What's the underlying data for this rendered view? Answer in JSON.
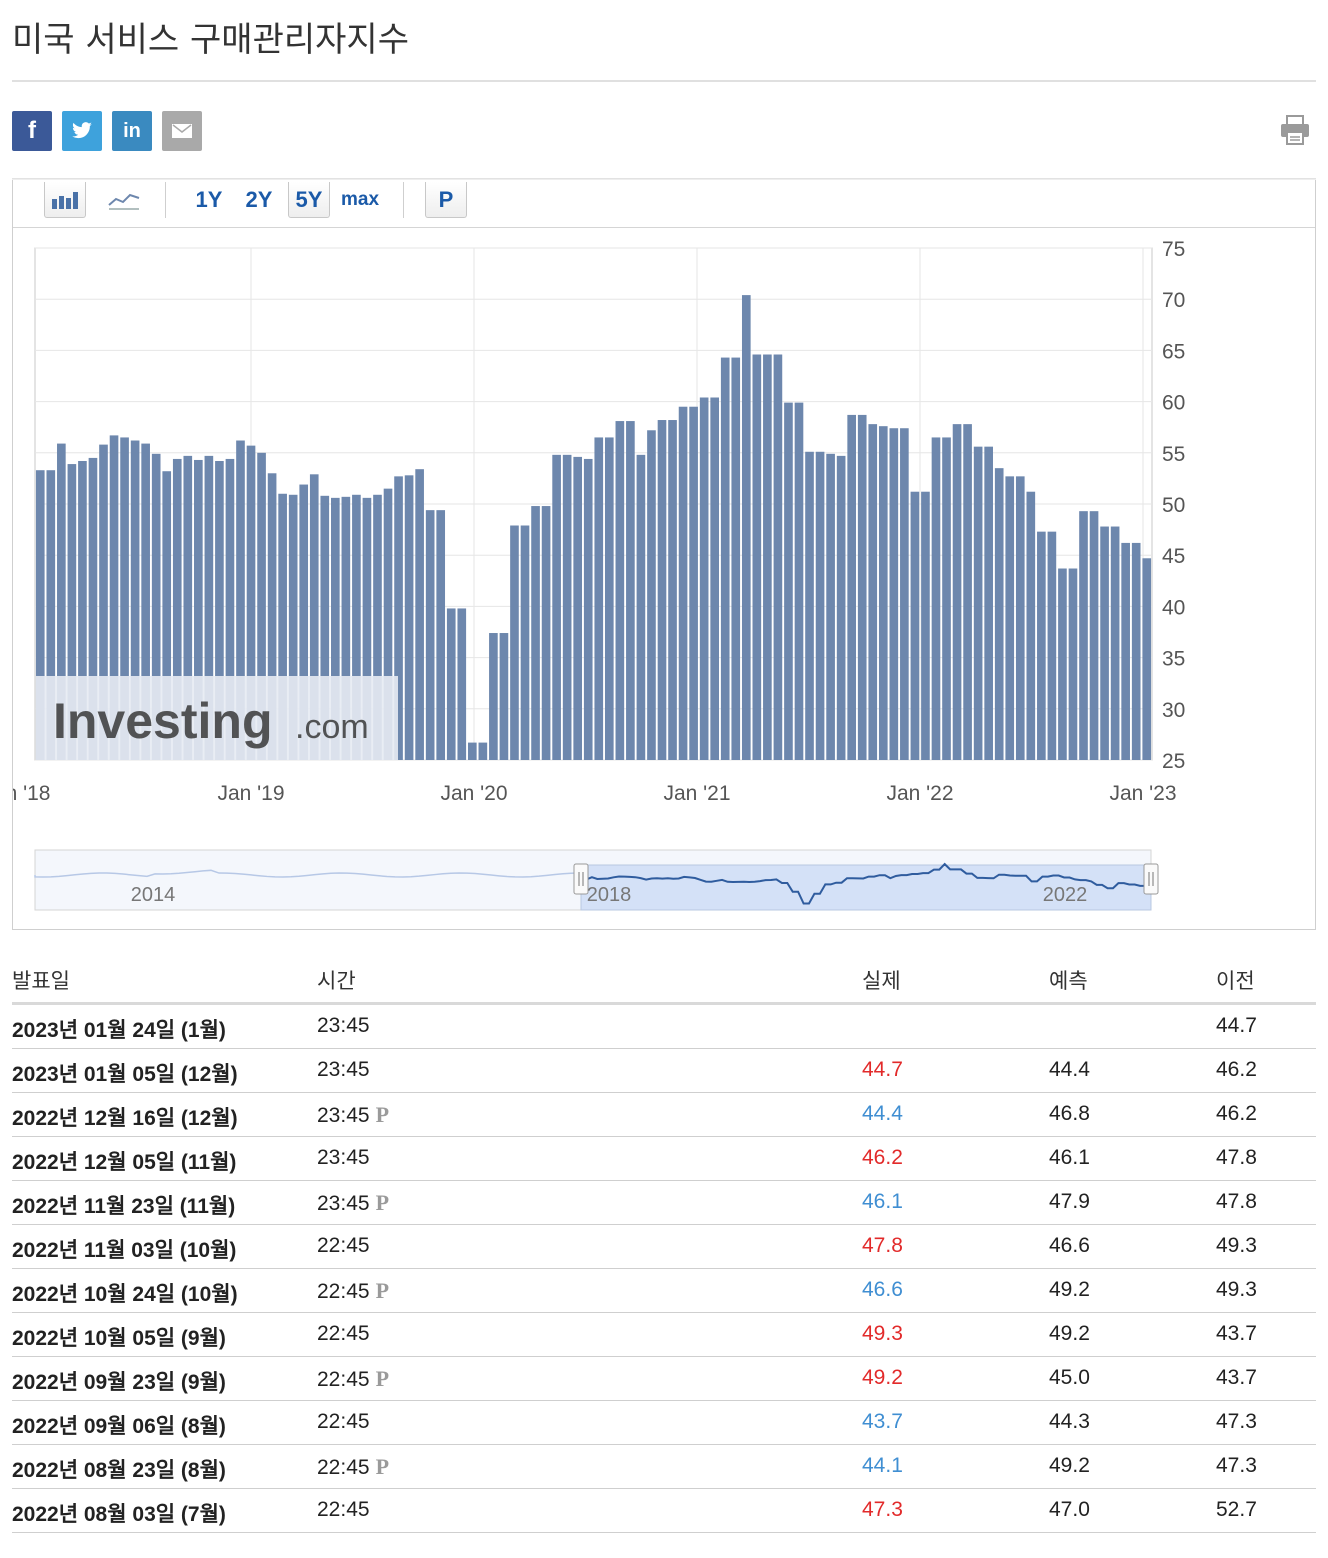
{
  "page": {
    "title": "미국 서비스 구매관리자지수"
  },
  "toolbar": {
    "ranges": [
      "1Y",
      "2Y",
      "5Y",
      "max"
    ],
    "active_range": "5Y",
    "p_label": "P"
  },
  "navigator": {
    "labels": [
      "2014",
      "2018",
      "2022"
    ]
  },
  "watermark": {
    "text": "Investing",
    "suffix": ".com"
  },
  "table": {
    "headers": {
      "date": "발표일",
      "time": "시간",
      "actual": "실제",
      "forecast": "예측",
      "previous": "이전"
    },
    "rows": [
      {
        "date": "2023년 01월 24일 (1월)",
        "time": "23:45",
        "prelim": "",
        "actual": "",
        "actual_color": "",
        "forecast": "",
        "previous": "44.7"
      },
      {
        "date": "2023년 01월 05일 (12월)",
        "time": "23:45",
        "prelim": "",
        "actual": "44.7",
        "actual_color": "red",
        "forecast": "44.4",
        "previous": "46.2"
      },
      {
        "date": "2022년 12월 16일 (12월)",
        "time": "23:45",
        "prelim": "P",
        "actual": "44.4",
        "actual_color": "blue",
        "forecast": "46.8",
        "previous": "46.2"
      },
      {
        "date": "2022년 12월 05일 (11월)",
        "time": "23:45",
        "prelim": "",
        "actual": "46.2",
        "actual_color": "red",
        "forecast": "46.1",
        "previous": "47.8"
      },
      {
        "date": "2022년 11월 23일 (11월)",
        "time": "23:45",
        "prelim": "P",
        "actual": "46.1",
        "actual_color": "blue",
        "forecast": "47.9",
        "previous": "47.8"
      },
      {
        "date": "2022년 11월 03일 (10월)",
        "time": "22:45",
        "prelim": "",
        "actual": "47.8",
        "actual_color": "red",
        "forecast": "46.6",
        "previous": "49.3"
      },
      {
        "date": "2022년 10월 24일 (10월)",
        "time": "22:45",
        "prelim": "P",
        "actual": "46.6",
        "actual_color": "blue",
        "forecast": "49.2",
        "previous": "49.3"
      },
      {
        "date": "2022년 10월 05일 (9월)",
        "time": "22:45",
        "prelim": "",
        "actual": "49.3",
        "actual_color": "red",
        "forecast": "49.2",
        "previous": "43.7"
      },
      {
        "date": "2022년 09월 23일 (9월)",
        "time": "22:45",
        "prelim": "P",
        "actual": "49.2",
        "actual_color": "red",
        "forecast": "45.0",
        "previous": "43.7"
      },
      {
        "date": "2022년 09월 06일 (8월)",
        "time": "22:45",
        "prelim": "",
        "actual": "43.7",
        "actual_color": "blue",
        "forecast": "44.3",
        "previous": "47.3"
      },
      {
        "date": "2022년 08월 23일 (8월)",
        "time": "22:45",
        "prelim": "P",
        "actual": "44.1",
        "actual_color": "blue",
        "forecast": "49.2",
        "previous": "47.3"
      },
      {
        "date": "2022년 08월 03일 (7월)",
        "time": "22:45",
        "prelim": "",
        "actual": "47.3",
        "actual_color": "red",
        "forecast": "47.0",
        "previous": "52.7"
      }
    ]
  },
  "colors": {
    "bar": "#6d87ad",
    "red": "#e22a2a",
    "blue": "#3f8ed2",
    "link": "#1b5aa8"
  },
  "chart_data": {
    "type": "bar",
    "ylim": [
      25,
      75
    ],
    "y_ticks": [
      75,
      70,
      65,
      60,
      55,
      50,
      45,
      40,
      35,
      30,
      25
    ],
    "x_tick_labels": [
      "n '18",
      "Jan '19",
      "Jan '20",
      "Jan '21",
      "Jan '22",
      "Jan '23"
    ],
    "grid": true,
    "values": [
      53.3,
      53.3,
      55.9,
      53.9,
      54.2,
      54.5,
      55.8,
      56.7,
      56.5,
      56.2,
      55.9,
      54.9,
      53.2,
      54.4,
      54.7,
      54.3,
      54.7,
      54.2,
      54.4,
      56.2,
      55.7,
      55.0,
      53.0,
      51.0,
      50.9,
      51.9,
      52.9,
      50.8,
      50.6,
      50.7,
      50.9,
      50.6,
      50.9,
      51.5,
      52.7,
      52.8,
      53.4,
      49.4,
      49.4,
      39.8,
      39.8,
      26.7,
      26.7,
      37.4,
      37.4,
      47.9,
      47.9,
      49.8,
      49.8,
      54.8,
      54.8,
      54.6,
      54.4,
      56.5,
      56.5,
      58.1,
      58.1,
      54.8,
      57.2,
      58.2,
      58.2,
      59.5,
      59.5,
      60.4,
      60.4,
      64.3,
      64.3,
      70.4,
      64.6,
      64.6,
      64.6,
      59.9,
      59.9,
      55.1,
      55.1,
      54.9,
      54.7,
      58.7,
      58.7,
      57.8,
      57.6,
      57.4,
      57.4,
      51.2,
      51.2,
      56.5,
      56.5,
      57.8,
      57.8,
      55.6,
      55.6,
      53.5,
      52.7,
      52.7,
      51.2,
      47.3,
      47.3,
      43.7,
      43.7,
      49.3,
      49.3,
      47.8,
      47.8,
      46.2,
      46.2,
      44.7
    ]
  }
}
